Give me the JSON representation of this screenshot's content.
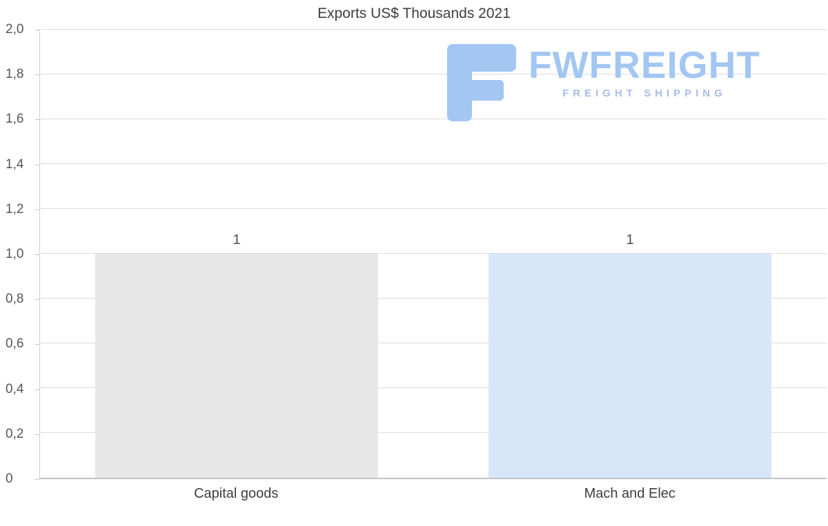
{
  "chart_data": {
    "type": "bar",
    "title": "Exports US$ Thousands 2021",
    "categories": [
      "Capital goods",
      "Mach and Elec"
    ],
    "values": [
      1,
      1
    ],
    "data_labels": [
      "1",
      "1"
    ],
    "bar_colors": [
      "#e7e7e7",
      "#d7e7f9"
    ],
    "ylim": [
      0,
      2
    ],
    "ytick_values": [
      0,
      0.2,
      0.4,
      0.6,
      0.8,
      1.0,
      1.2,
      1.4,
      1.6,
      1.8,
      2.0
    ],
    "ytick_labels": [
      "0",
      "0,2",
      "0,4",
      "0,6",
      "0,8",
      "1,0",
      "1,2",
      "1,4",
      "1,6",
      "1,8",
      "2,0"
    ],
    "xlabel": "",
    "ylabel": "",
    "grid": true,
    "legend": false,
    "decimal_separator": ","
  },
  "watermark": {
    "brand": "FWFREIGHT",
    "tagline": "FREIGHT SHIPPING"
  },
  "colors": {
    "background": "#ffffff",
    "grid": "#dcdcdc",
    "axis": "#c2c2c2",
    "title_text": "#3d3d3d",
    "tick_text": "#565656",
    "category_text": "#3d3d3d",
    "value_label_text": "#4d4d4d",
    "logo_blue": "#a3c6f2",
    "tagline_blue": "#a9bbe6"
  }
}
